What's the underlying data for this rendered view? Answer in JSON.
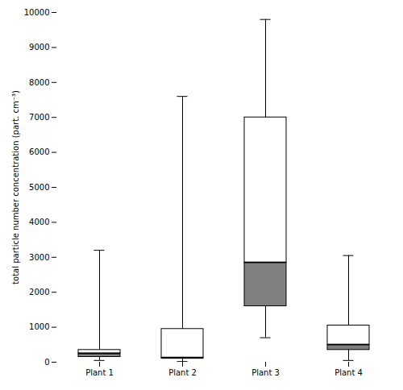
{
  "chart_data": {
    "type": "box",
    "categories": [
      "Plant 1",
      "Plant 2",
      "Plant 3",
      "Plant 4"
    ],
    "min": [
      50,
      20,
      700,
      50
    ],
    "q1": [
      150,
      100,
      1600,
      350
    ],
    "median": [
      250,
      130,
      2850,
      500
    ],
    "q3": [
      350,
      950,
      7000,
      1050
    ],
    "max": [
      3200,
      7600,
      9800,
      3050
    ],
    "ylabel": "total particle number concentration (part. cm⁻³)",
    "ylim": [
      0,
      10000
    ],
    "yticks": [
      0,
      1000,
      2000,
      3000,
      4000,
      5000,
      6000,
      7000,
      8000,
      9000,
      10000
    ],
    "color": "#808080",
    "grid": false
  }
}
